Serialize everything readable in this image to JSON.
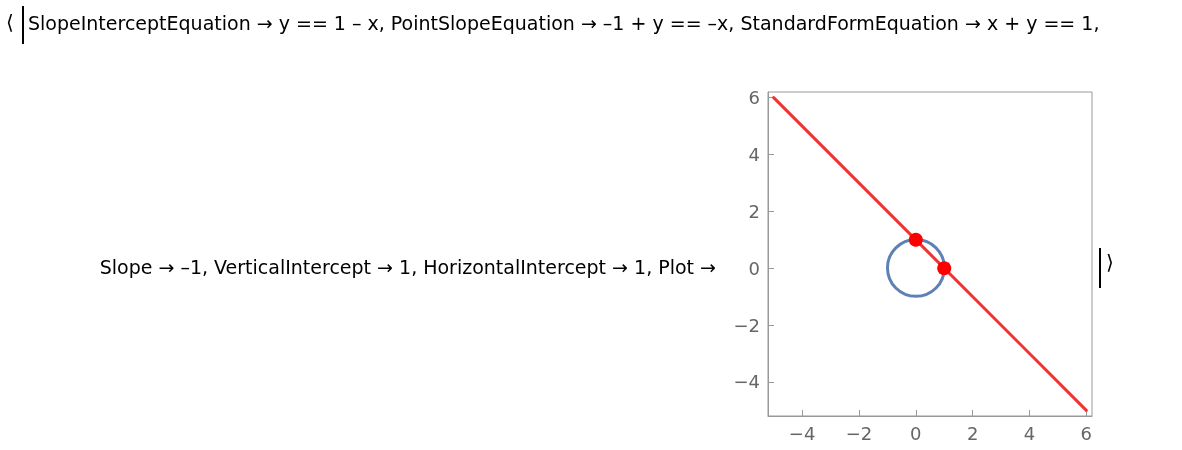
{
  "chart_data": {
    "type": "line",
    "annotations": [
      "⟨",
      "SlopeInterceptEquation → y == 1 – x, PointSlopeEquation → –1 + y == –x, StandardFormEquation → x + y == 1,",
      "Slope → –1, VerticalIntercept → 1, HorizontalIntercept → 1, Plot →",
      "⟩"
    ],
    "series": [
      {
        "color": "#f03232",
        "x": [
          -5,
          6
        ],
        "values": [
          6,
          -5
        ],
        "marker": "none"
      },
      {
        "type": "scatter",
        "color": "#ff0000",
        "marker": "circle",
        "x": [
          0,
          1
        ],
        "values": [
          1,
          0
        ]
      }
    ],
    "xlim": [
      -5.2,
      6.2
    ],
    "ylim": [
      -5.2,
      6.2
    ],
    "xticks": [
      -4,
      -2,
      0,
      2,
      4,
      6
    ],
    "yticks": [
      -4,
      -2,
      0,
      2,
      4,
      6
    ],
    "grid": false,
    "line_style": "solid"
  }
}
